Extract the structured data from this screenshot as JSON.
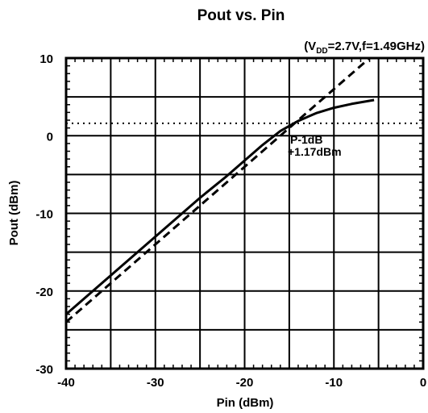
{
  "chart_data": {
    "type": "line",
    "title": "Pout vs. Pin",
    "subtitle": {
      "prefix": "(V",
      "subscript": "DD",
      "suffix": "=2.7V,f=1.49GHz)"
    },
    "xlabel": "Pin (dBm)",
    "ylabel": "Pout (dBm)",
    "xlim": [
      -40,
      0
    ],
    "ylim": [
      -30,
      10
    ],
    "xticks": [
      -40,
      -30,
      -20,
      -10,
      0
    ],
    "yticks": [
      -30,
      -20,
      -10,
      0,
      10
    ],
    "x_gridlines": [
      -35,
      -30,
      -25,
      -20,
      -15,
      -10,
      -5
    ],
    "y_gridlines": [
      -25,
      -20,
      -15,
      -10,
      -5,
      0,
      5
    ],
    "grid": true,
    "series": [
      {
        "style": "solid",
        "x": [
          -40,
          -35,
          -30,
          -25,
          -22,
          -20,
          -18,
          -16,
          -14,
          -12,
          -10,
          -8,
          -5.5
        ],
        "y": [
          -23,
          -18,
          -13,
          -8,
          -5.2,
          -3.2,
          -1.2,
          0.6,
          1.9,
          2.9,
          3.6,
          4.1,
          4.6
        ]
      },
      {
        "style": "dashed",
        "x": [
          -40,
          -6
        ],
        "y": [
          -24,
          10
        ]
      },
      {
        "style": "dotted",
        "x": [
          -40,
          0
        ],
        "y": [
          1.6,
          1.6
        ]
      }
    ],
    "annotation": {
      "lines": [
        "P-1dB",
        "+1.17dBm"
      ],
      "at_x": -15.2,
      "at_y": 1.17
    }
  }
}
